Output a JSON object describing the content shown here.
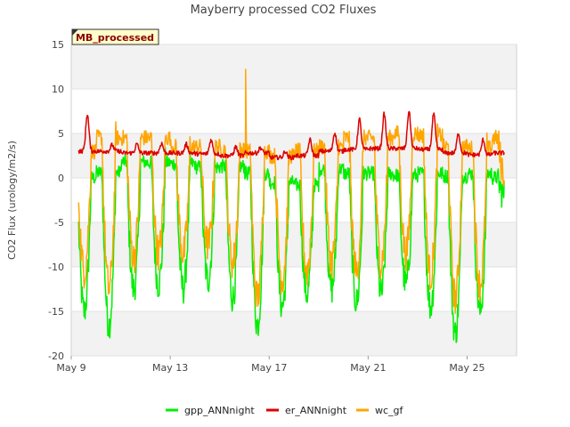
{
  "chart_data": {
    "type": "line",
    "title": "Mayberry processed CO2 Fluxes",
    "tag": "MB_processed",
    "xlabel": "",
    "ylabel": "CO2 Flux (urology/m2/s)",
    "xlim": [
      9,
      27
    ],
    "ylim": [
      -20,
      15
    ],
    "x_ticks": [
      {
        "value": 9,
        "label": "May 9"
      },
      {
        "value": 13,
        "label": "May 13"
      },
      {
        "value": 17,
        "label": "May 17"
      },
      {
        "value": 21,
        "label": "May 21"
      },
      {
        "value": 25,
        "label": "May 25"
      }
    ],
    "y_ticks": [
      -20,
      -15,
      -10,
      -5,
      0,
      5,
      10,
      15
    ],
    "grid": "horizontal bands",
    "legend_position": "bottom",
    "series": [
      {
        "name": "gpp_ANNnight",
        "color": "#00ee00",
        "day_start": 9.3,
        "day_end": 26.5,
        "night_values": [
          0.0,
          0.6,
          1.8,
          1.7,
          1.6,
          1.2,
          1.3,
          0.5,
          -0.5,
          -0.8,
          1.0,
          0.5,
          0.5,
          0.3,
          0.5,
          0.2,
          0.5,
          0.0
        ],
        "day_minimum": [
          -15.0,
          -16.5,
          -12.5,
          -12.0,
          -12.5,
          -11.5,
          -13.5,
          -16.5,
          -14.5,
          -13.0,
          -12.5,
          -14.0,
          -13.0,
          -12.0,
          -14.5,
          -17.5,
          -15.0,
          -2.0
        ]
      },
      {
        "name": "er_ANNnight",
        "color": "#dd0000",
        "day_start": 9.3,
        "day_end": 26.5,
        "day_peaks": [
          7.2,
          3.7,
          3.8,
          3.9,
          3.8,
          4.3,
          3.5,
          3.4,
          3.0,
          4.3,
          5.1,
          6.6,
          7.2,
          7.5,
          7.2,
          5.0,
          4.3,
          3.2
        ],
        "night_base": [
          3.0,
          3.0,
          2.8,
          2.8,
          2.8,
          2.7,
          2.5,
          2.8,
          2.3,
          2.5,
          3.0,
          3.2,
          3.3,
          3.3,
          3.2,
          2.8,
          2.6,
          2.8
        ]
      },
      {
        "name": "wc_gf",
        "color": "#ffa500",
        "day_start": 9.3,
        "day_end": 26.5,
        "night_values": [
          3.0,
          4.5,
          4.5,
          4.5,
          3.5,
          3.5,
          3.2,
          3.0,
          2.5,
          3.0,
          3.5,
          4.5,
          4.5,
          5.0,
          4.8,
          3.5,
          3.3,
          4.5
        ],
        "day_minimum": [
          -10.5,
          -12.5,
          -9.0,
          -8.5,
          -8.5,
          -7.5,
          -9.5,
          -13.5,
          -11.5,
          -10.5,
          -9.5,
          -10.5,
          -9.5,
          -8.5,
          -11.0,
          -13.5,
          -12.0,
          0.5
        ],
        "spike": {
          "x": 16.05,
          "y": 12.2
        }
      }
    ]
  }
}
